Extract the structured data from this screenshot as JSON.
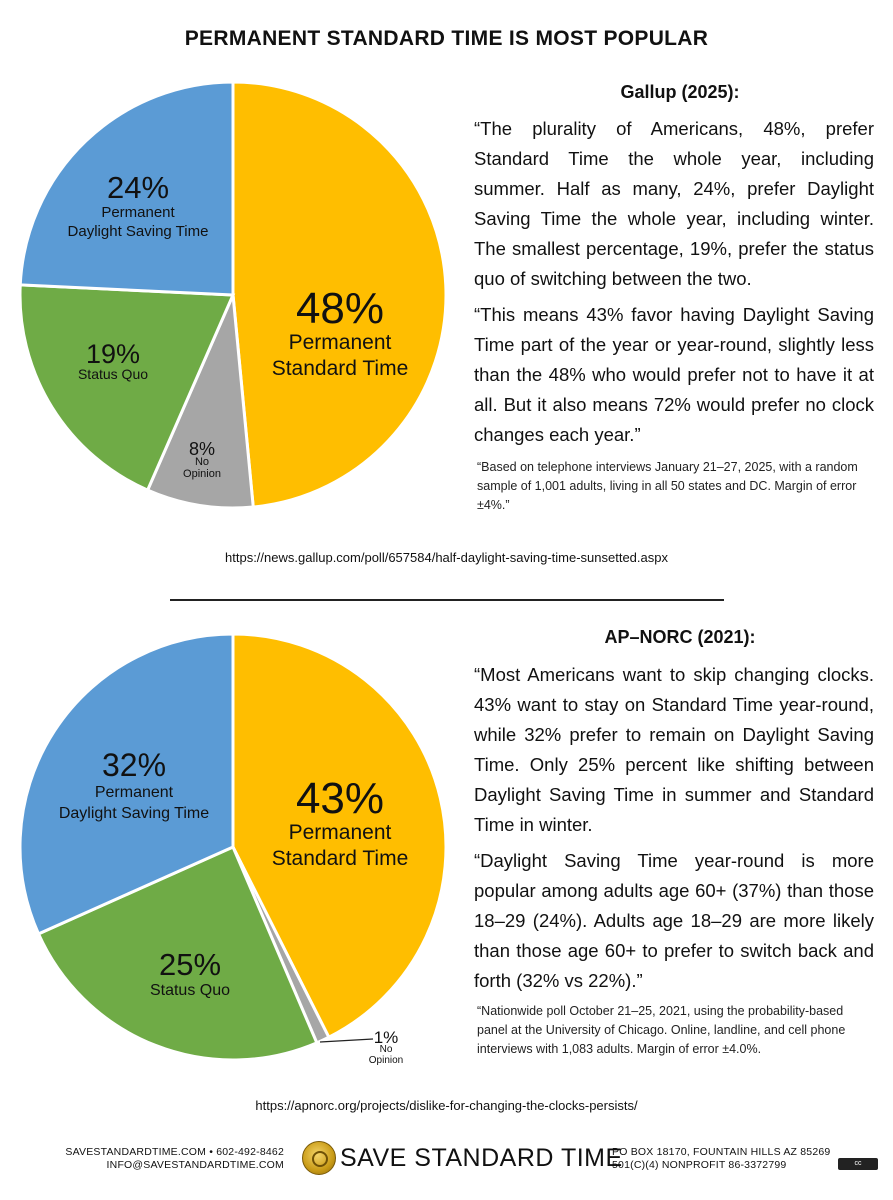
{
  "header": {
    "title": "PERMANENT STANDARD TIME IS MOST POPULAR"
  },
  "chart_data": [
    {
      "type": "pie",
      "source": "Gallup (2025):",
      "slices": [
        {
          "label": "Permanent Standard Time",
          "value": 48,
          "pct_label": "48%",
          "color": "#FFBE00"
        },
        {
          "label": "No Opinion",
          "value": 8,
          "pct_label": "8%",
          "color": "#A6A6A6"
        },
        {
          "label": "Status Quo",
          "value": 19,
          "pct_label": "19%",
          "color": "#6FAB46"
        },
        {
          "label": "Permanent Daylight Saving Time",
          "value": 24,
          "pct_label": "24%",
          "color": "#5B9BD5"
        }
      ]
    },
    {
      "type": "pie",
      "source": "AP–NORC (2021):",
      "slices": [
        {
          "label": "Permanent Standard Time",
          "value": 43,
          "pct_label": "43%",
          "color": "#FFBE00"
        },
        {
          "label": "No Opinion",
          "value": 1,
          "pct_label": "1%",
          "color": "#A6A6A6"
        },
        {
          "label": "Status Quo",
          "value": 25,
          "pct_label": "25%",
          "color": "#6FAB46"
        },
        {
          "label": "Permanent Daylight Saving Time",
          "value": 32,
          "pct_label": "32%",
          "color": "#5B9BD5"
        }
      ]
    }
  ],
  "gallup": {
    "quote1": "“The plurality of Americans, 48%, prefer Standard Time the whole year, including summer. Half as many, 24%, prefer Daylight Saving Time the whole year, including winter. The smallest percentage, 19%, prefer the status quo of switching between the two.",
    "quote2": "“This means 43% favor having Daylight Saving Time part of the year or year-round, slightly less than the 48% who would prefer not to have it at all. But it also means 72% would prefer no clock changes each year.”",
    "note": "“Based on telephone interviews January 21–27, 2025, with a random sample of 1,001 adults, living in all 50 states and DC. Margin of error ±4%.”",
    "url": "https://news.gallup.com/poll/657584/half-daylight-saving-time-sunsetted.aspx"
  },
  "apnorc": {
    "quote1": "“Most Americans want to skip changing clocks. 43% want to stay on Standard Time year-round, while 32% prefer to remain on Daylight Saving Time.  Only 25% percent like shifting between Daylight Saving Time in summer and Standard Time in winter.",
    "quote2": "“Daylight Saving Time year-round is more popular among adults age 60+ (37%) than those 18–29 (24%). Adults age 18–29 are more likely than those age 60+ to prefer to switch back and forth (32% vs 22%).”",
    "note": "“Nationwide poll October 21–25, 2021, using the probability-based panel at the University of Chicago. Online, landline, and cell phone interviews with 1,083 adults. Margin of error ±4.0%.",
    "url": "https://apnorc.org/projects/dislike-for-changing-the-clocks-persists/"
  },
  "footer": {
    "website": "SAVESTANDARDTIME.COM • 602-492-8462",
    "email": "INFO@SAVESTANDARDTIME.COM",
    "org_name": "SAVE STANDARD TIME",
    "address": "PO BOX 18170, FOUNTAIN HILLS AZ 85269",
    "nonprofit": "501(C)(4) NONPROFIT 86-3372799",
    "license_badge": "cc",
    "logo_icon": "sun-seal-icon"
  }
}
